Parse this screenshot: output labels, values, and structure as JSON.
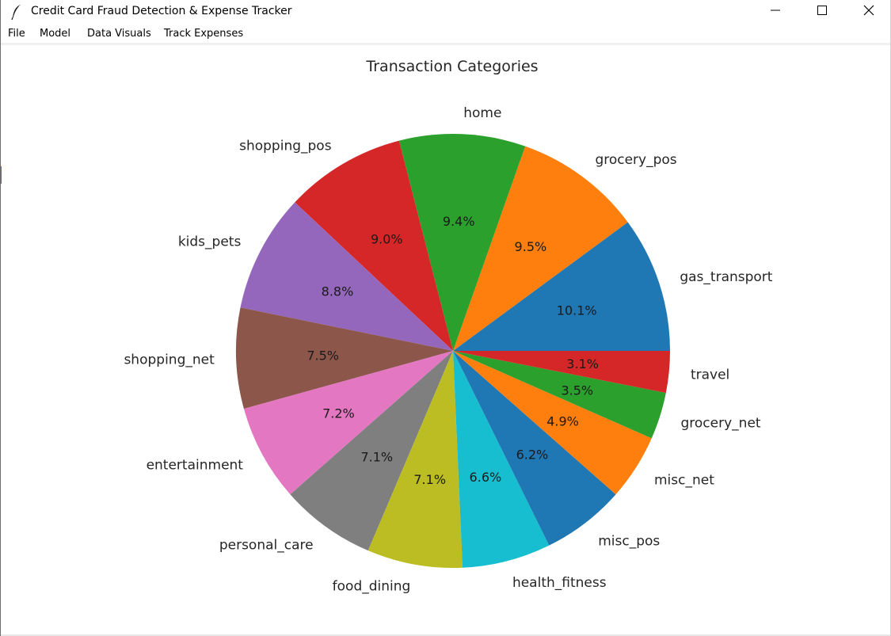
{
  "window": {
    "title": "Credit Card Fraud Detection & Expense Tracker",
    "icon": "feather-icon"
  },
  "menubar": {
    "items": [
      {
        "label": "File"
      },
      {
        "label": "Model"
      },
      {
        "label": "Data Visuals"
      },
      {
        "label": "Track Expenses"
      }
    ]
  },
  "chart_data": {
    "type": "pie",
    "title": "Transaction Categories",
    "start_angle_deg": 0,
    "direction": "counterclockwise",
    "slices": [
      {
        "label": "gas_transport",
        "value": 10.1,
        "pct_label": "10.1%",
        "color": "#1f77b4"
      },
      {
        "label": "grocery_pos",
        "value": 9.5,
        "pct_label": "9.5%",
        "color": "#ff7f0e"
      },
      {
        "label": "home",
        "value": 9.4,
        "pct_label": "9.4%",
        "color": "#2ca02c"
      },
      {
        "label": "shopping_pos",
        "value": 9.0,
        "pct_label": "9.0%",
        "color": "#d62728"
      },
      {
        "label": "kids_pets",
        "value": 8.8,
        "pct_label": "8.8%",
        "color": "#9467bd"
      },
      {
        "label": "shopping_net",
        "value": 7.5,
        "pct_label": "7.5%",
        "color": "#8c564b"
      },
      {
        "label": "entertainment",
        "value": 7.2,
        "pct_label": "7.2%",
        "color": "#e377c2"
      },
      {
        "label": "personal_care",
        "value": 7.1,
        "pct_label": "7.1%",
        "color": "#7f7f7f"
      },
      {
        "label": "food_dining",
        "value": 7.1,
        "pct_label": "7.1%",
        "color": "#bcbd22"
      },
      {
        "label": "health_fitness",
        "value": 6.6,
        "pct_label": "6.6%",
        "color": "#17becf"
      },
      {
        "label": "misc_pos",
        "value": 6.2,
        "pct_label": "6.2%",
        "color": "#1f77b4"
      },
      {
        "label": "misc_net",
        "value": 4.9,
        "pct_label": "4.9%",
        "color": "#ff7f0e"
      },
      {
        "label": "grocery_net",
        "value": 3.5,
        "pct_label": "3.5%",
        "color": "#2ca02c"
      },
      {
        "label": "travel",
        "value": 3.1,
        "pct_label": "3.1%",
        "color": "#d62728"
      }
    ]
  }
}
